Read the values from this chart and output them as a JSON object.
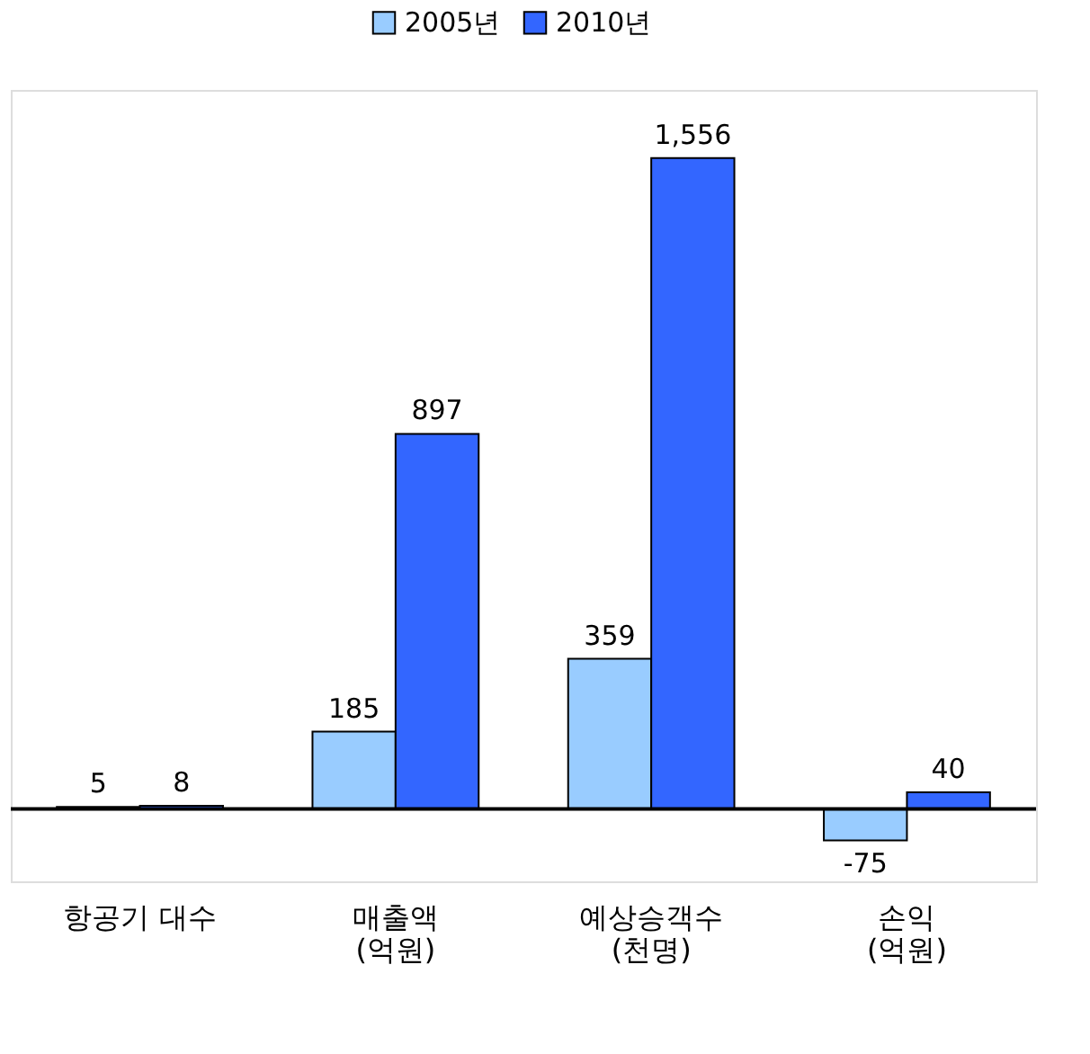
{
  "chart_data": {
    "type": "bar",
    "categories": [
      "항공기 대수",
      "매출액\n(억원)",
      "예상승객수\n(천명)",
      "손익\n(억원)"
    ],
    "series": [
      {
        "name": "2005년",
        "color": "#99ccff",
        "values": [
          5,
          185,
          359,
          -75
        ],
        "value_labels": [
          "5",
          "185",
          "359",
          "-75"
        ]
      },
      {
        "name": "2010년",
        "color": "#3366ff",
        "values": [
          8,
          897,
          1556,
          40
        ],
        "value_labels": [
          "8",
          "897",
          "1,556",
          "40"
        ]
      }
    ],
    "legend": "top",
    "grid": false
  }
}
